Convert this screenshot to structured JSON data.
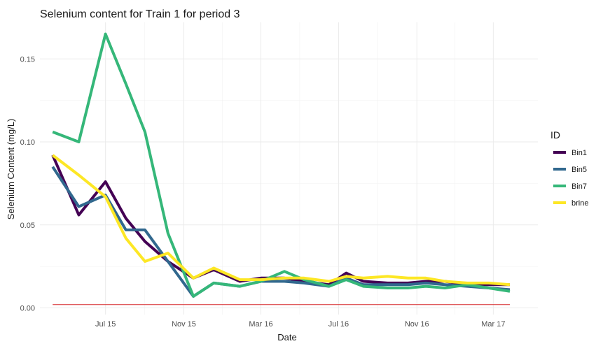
{
  "chart_data": {
    "type": "line",
    "title": "Selenium content for Train 1 for period 3",
    "xlabel": "Date",
    "ylabel": "Selenium Content (mg/L)",
    "x_ticks": [
      "2015-07-01",
      "2015-11-01",
      "2016-03-01",
      "2016-07-01",
      "2016-11-01",
      "2017-03-01"
    ],
    "x_tick_labels": [
      "Jul 15",
      "Nov 15",
      "Mar 16",
      "Jul 16",
      "Nov 16",
      "Mar 17"
    ],
    "xlim": [
      "2015-03-20",
      "2017-05-10"
    ],
    "y_ticks": [
      0,
      0.05,
      0.1,
      0.15
    ],
    "y_tick_labels": [
      "0.00",
      "0.05",
      "0.10",
      "0.15"
    ],
    "ylim": [
      -0.004,
      0.172
    ],
    "grid": true,
    "legend": {
      "title": "ID",
      "position": "right"
    },
    "x": [
      "2015-04-09",
      "2015-05-20",
      "2015-07-01",
      "2015-08-02",
      "2015-09-01",
      "2015-10-07",
      "2015-11-16",
      "2015-12-18",
      "2016-01-28",
      "2016-03-01",
      "2016-04-07",
      "2016-05-08",
      "2016-06-16",
      "2016-07-13",
      "2016-08-09",
      "2016-09-16",
      "2016-10-18",
      "2016-11-15",
      "2016-12-15",
      "2017-01-19",
      "2017-02-22",
      "2017-03-27"
    ],
    "series": [
      {
        "name": "Bin1",
        "color": "#440154",
        "values": [
          0.092,
          0.056,
          0.076,
          0.054,
          0.04,
          0.028,
          0.018,
          0.023,
          0.016,
          0.018,
          0.018,
          0.016,
          0.014,
          0.021,
          0.016,
          0.015,
          0.015,
          0.016,
          0.016,
          0.014,
          0.014,
          0.014
        ]
      },
      {
        "name": "Bin5",
        "color": "#31688E",
        "values": [
          0.085,
          0.061,
          0.068,
          0.047,
          0.047,
          0.028,
          0.007,
          0.015,
          0.013,
          0.016,
          0.016,
          0.015,
          0.013,
          0.018,
          0.014,
          0.014,
          0.014,
          0.015,
          0.014,
          0.013,
          0.012,
          0.011
        ]
      },
      {
        "name": "Bin7",
        "color": "#35B779",
        "values": [
          0.106,
          0.1,
          0.165,
          0.135,
          0.106,
          0.045,
          0.007,
          0.015,
          0.013,
          0.016,
          0.022,
          0.017,
          0.013,
          0.017,
          0.013,
          0.012,
          0.012,
          0.013,
          0.012,
          0.014,
          0.012,
          0.01
        ]
      },
      {
        "name": "brine",
        "color": "#FDE725",
        "values": [
          0.092,
          0.08,
          0.067,
          0.042,
          0.028,
          0.033,
          0.018,
          0.024,
          0.017,
          0.017,
          0.018,
          0.018,
          0.016,
          0.019,
          0.018,
          0.019,
          0.018,
          0.018,
          0.016,
          0.015,
          0.015,
          0.014
        ]
      }
    ],
    "reference_line": {
      "y": 0.002,
      "color": "#d62728"
    }
  }
}
